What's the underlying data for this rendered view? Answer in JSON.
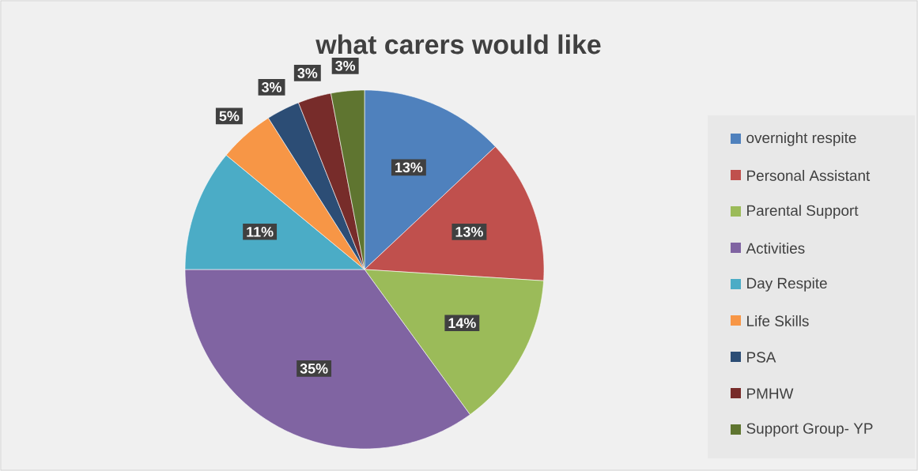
{
  "chart_data": {
    "type": "pie",
    "title": "what carers would like",
    "categories": [
      "overnight respite",
      "Personal Assistant",
      "Parental Support",
      "Activities",
      "Day Respite",
      "Life Skills",
      "PSA",
      "PMHW",
      "Support Group- YP"
    ],
    "values": [
      13,
      13,
      14,
      35,
      11,
      5,
      3,
      3,
      3
    ],
    "colors": [
      "#4f81bd",
      "#c0504d",
      "#9bbb59",
      "#8064a2",
      "#4bacc6",
      "#f79646",
      "#2c4d75",
      "#772c2a",
      "#5f7530"
    ],
    "value_labels": [
      "13%",
      "13%",
      "14%",
      "35%",
      "11%",
      "5%",
      "3%",
      "3%",
      "3%"
    ],
    "legend": "right"
  }
}
